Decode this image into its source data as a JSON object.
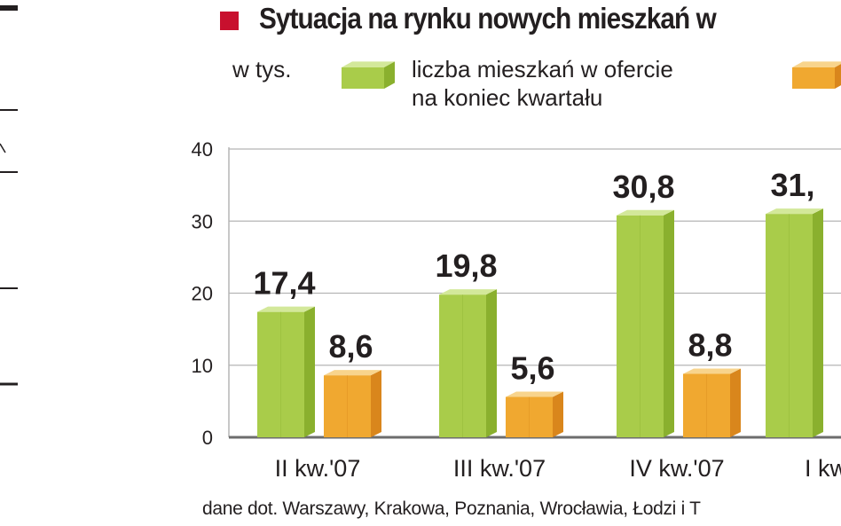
{
  "title": "Sytuacja na rynku nowych mieszkań w",
  "unit_label": "w tys.",
  "legend": [
    {
      "line1": "liczba mieszkań w ofercie",
      "line2": "na koniec kwartału",
      "color": "#a9cc4a"
    },
    {
      "line1": "",
      "line2": "",
      "color": "#f0a830"
    }
  ],
  "colors": {
    "green_front": "#a9cc4a",
    "green_side": "#8ab02e",
    "green_top": "#d3e89a",
    "orange_front": "#f0a830",
    "orange_side": "#d9861c",
    "orange_top": "#f8d48c",
    "title_square": "#c8102e"
  },
  "chart_data": {
    "type": "bar",
    "categories": [
      "II kw.'07",
      "III kw.'07",
      "IV kw.'07",
      "I kw"
    ],
    "series": [
      {
        "name": "liczba mieszkań w ofercie na koniec kwartału",
        "values": [
          17.4,
          19.8,
          30.8,
          31.0
        ],
        "labels": [
          "17,4",
          "19,8",
          "30,8",
          "31,"
        ]
      },
      {
        "values": [
          8.6,
          5.6,
          8.8,
          null
        ],
        "labels": [
          "8,6",
          "5,6",
          "8,8",
          ""
        ]
      }
    ],
    "yticks": [
      "0",
      "10",
      "20",
      "30",
      "40"
    ],
    "ylim": [
      0,
      40
    ],
    "grid": true,
    "legend_position": "top"
  },
  "footnote": "dane dot. Warszawy, Krakowa, Poznania, Wrocławia, Łodzi  i T"
}
